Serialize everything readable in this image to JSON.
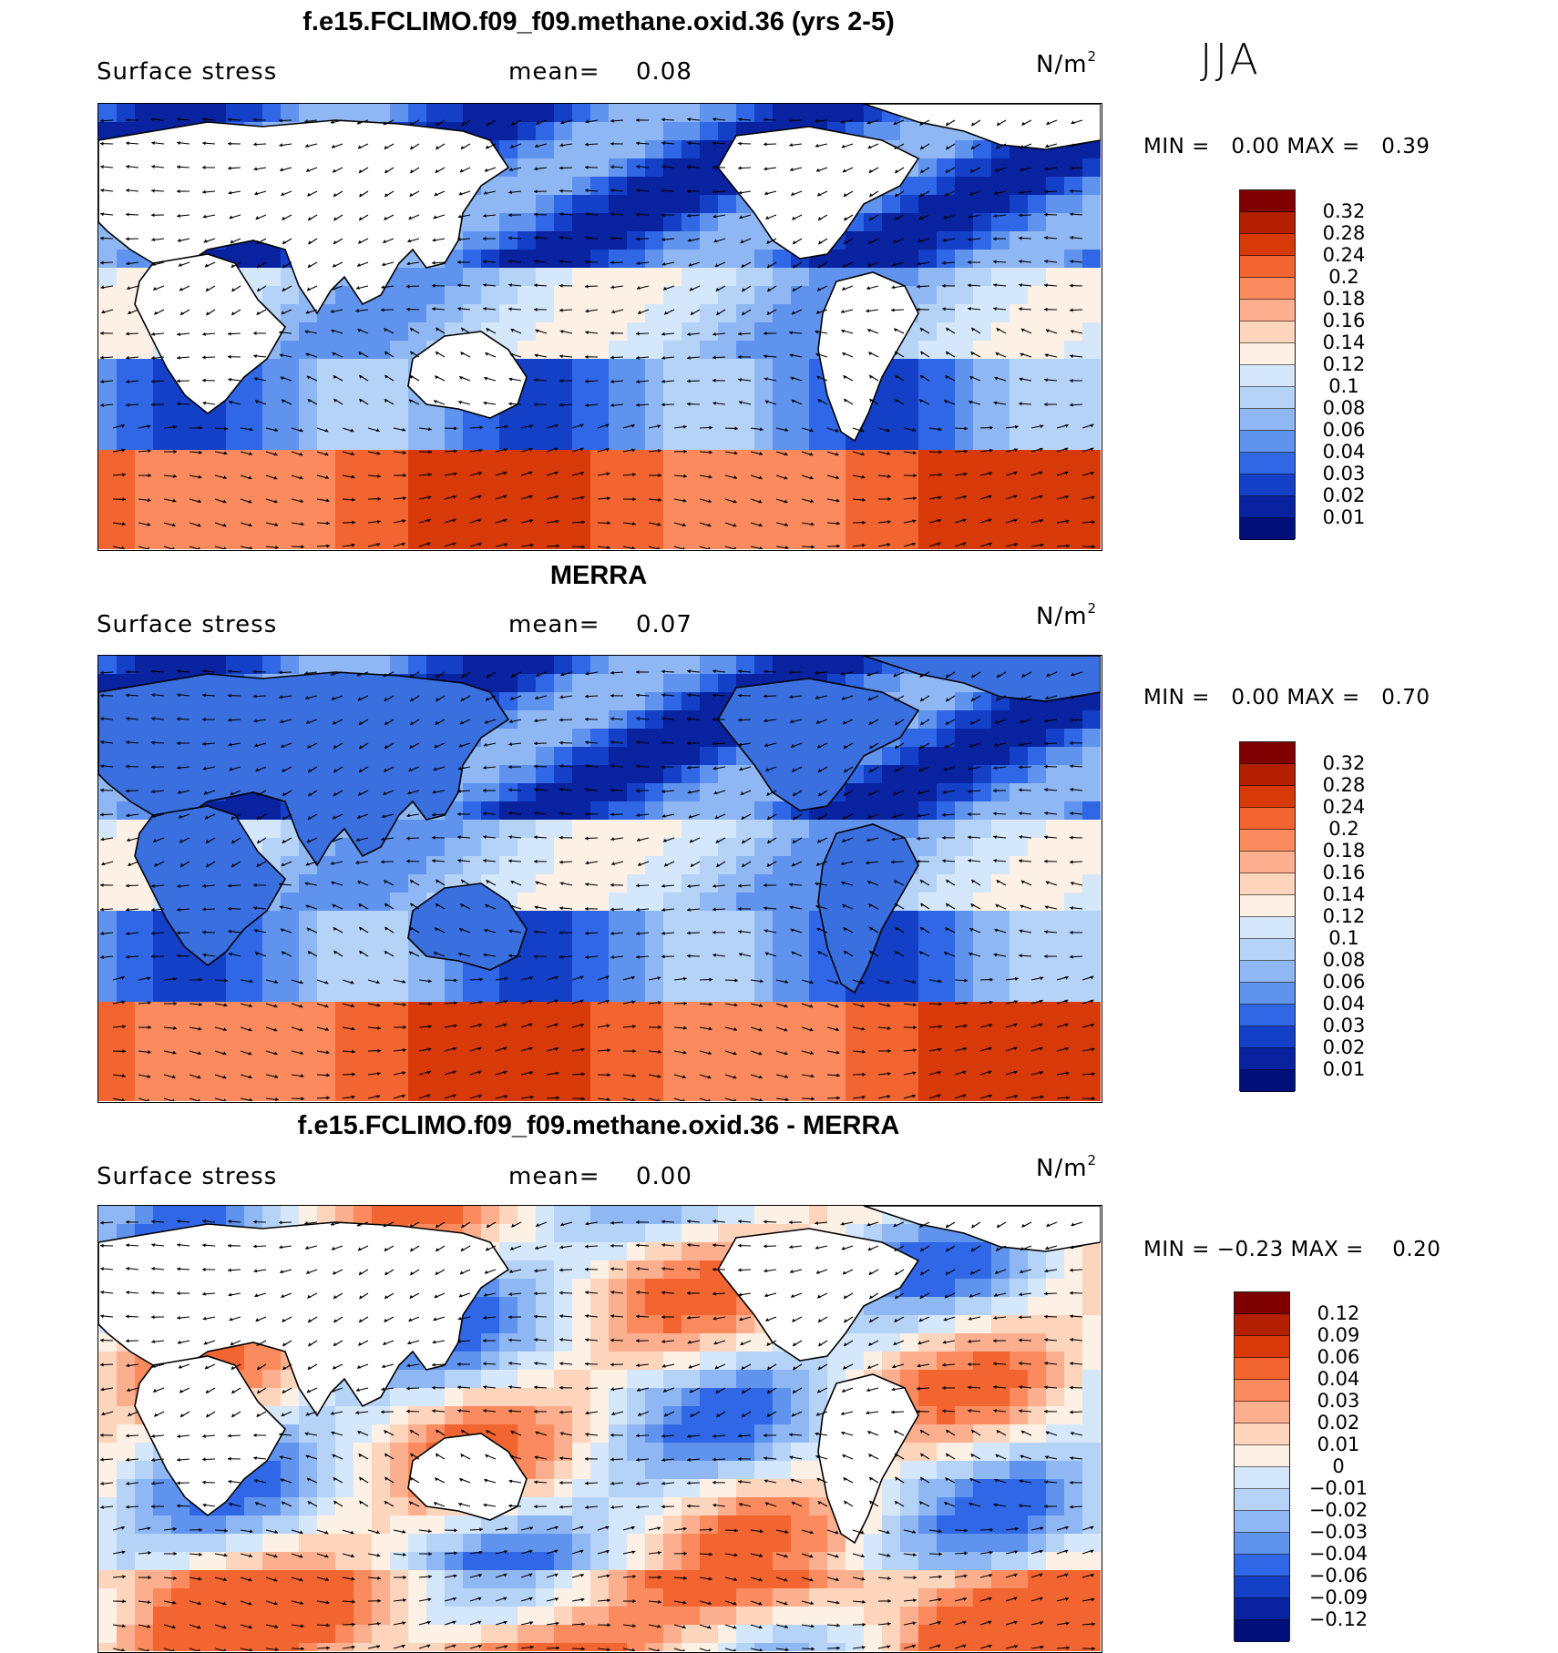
{
  "season": "JJA",
  "panels": [
    {
      "title": "f.e15.FCLIMO.f09_f09.methane.oxid.36 (yrs 2-5)",
      "variable": "Surface stress",
      "mean_label": "mean=",
      "mean_value": "0.08",
      "units": "N/m",
      "units_exp": "2",
      "min_label": "MIN =",
      "min_value": "0.00",
      "max_label": "MAX =",
      "max_value": "0.39",
      "colorbar": {
        "colors": [
          "#7f0000",
          "#b22000",
          "#d73a08",
          "#f26430",
          "#fb8b5e",
          "#fcaf8f",
          "#fdd5bd",
          "#fdf0e4",
          "#d5e7fa",
          "#b5d2f7",
          "#8fb7f4",
          "#5f93ee",
          "#2f67e6",
          "#1440c8",
          "#0822a0",
          "#001078"
        ],
        "labels": [
          "0.32",
          "0.28",
          "0.24",
          "0.2",
          "0.18",
          "0.16",
          "0.14",
          "0.12",
          "0.1",
          "0.08",
          "0.06",
          "0.04",
          "0.03",
          "0.02",
          "0.01"
        ]
      }
    },
    {
      "title": "MERRA",
      "variable": "Surface stress",
      "mean_label": "mean=",
      "mean_value": "0.07",
      "units": "N/m",
      "units_exp": "2",
      "min_label": "MIN =",
      "min_value": "0.00",
      "max_label": "MAX =",
      "max_value": "0.70",
      "colorbar": {
        "colors": [
          "#7f0000",
          "#b22000",
          "#d73a08",
          "#f26430",
          "#fb8b5e",
          "#fcaf8f",
          "#fdd5bd",
          "#fdf0e4",
          "#d5e7fa",
          "#b5d2f7",
          "#8fb7f4",
          "#5f93ee",
          "#2f67e6",
          "#1440c8",
          "#0822a0",
          "#001078"
        ],
        "labels": [
          "0.32",
          "0.28",
          "0.24",
          "0.2",
          "0.18",
          "0.16",
          "0.14",
          "0.12",
          "0.1",
          "0.08",
          "0.06",
          "0.04",
          "0.03",
          "0.02",
          "0.01"
        ]
      }
    },
    {
      "title": "f.e15.FCLIMO.f09_f09.methane.oxid.36 - MERRA",
      "variable": "Surface stress",
      "mean_label": "mean=",
      "mean_value": "0.00",
      "units": "N/m",
      "units_exp": "2",
      "min_label": "MIN =",
      "min_value": "−0.23",
      "max_label": "MAX =",
      "max_value": "0.20",
      "colorbar": {
        "colors": [
          "#7f0000",
          "#b22000",
          "#d73a08",
          "#f26430",
          "#fb8b5e",
          "#fcaf8f",
          "#fdd5bd",
          "#fdf0e4",
          "#d5e7fa",
          "#b5d2f7",
          "#8fb7f4",
          "#5f93ee",
          "#2f67e6",
          "#1440c8",
          "#0822a0",
          "#001078"
        ],
        "labels": [
          "0.12",
          "0.09",
          "0.06",
          "0.04",
          "0.03",
          "0.02",
          "0.01",
          "0",
          "−0.01",
          "−0.02",
          "−0.03",
          "−0.04",
          "−0.06",
          "−0.09",
          "−0.12"
        ]
      }
    }
  ]
}
